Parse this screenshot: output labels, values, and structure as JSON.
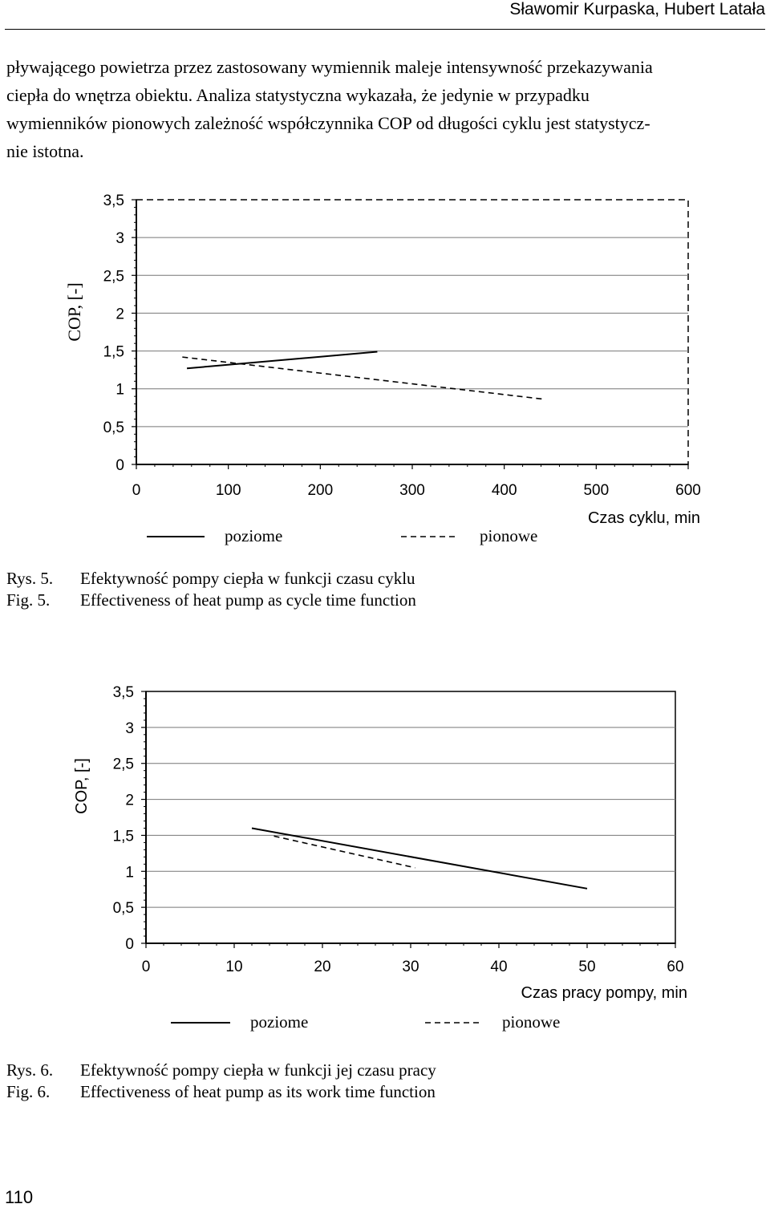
{
  "header": {
    "authors": "Sławomir Kurpaska, Hubert Latała"
  },
  "paragraph": {
    "lines": [
      "pływającego powietrza przez zastosowany wymiennik maleje intensywność przekazywania",
      "ciepła do wnętrza obiektu. Analiza statystyczna wykazała, że jedynie w przypadku",
      "wymienników pionowych zależność współczynnika COP od długości cyklu jest statystycz-",
      "nie istotna."
    ]
  },
  "figures": [
    {
      "caption": {
        "rys_label": "Rys. 5.",
        "rys_text": "Efektywność pompy ciepła w funkcji czasu cyklu",
        "fig_label": "Fig. 5.",
        "fig_text": "Effectiveness of heat pump as cycle time function"
      }
    },
    {
      "caption": {
        "rys_label": "Rys. 6.",
        "rys_text": "Efektywność pompy ciepła w funkcji jej czasu pracy",
        "fig_label": "Fig. 6.",
        "fig_text": "Effectiveness of heat pump as its work time function"
      }
    }
  ],
  "chart_data": [
    {
      "type": "line",
      "xlabel": "Czas cyklu, min",
      "ylabel": "COP, [-]",
      "xlim": [
        0,
        600
      ],
      "ylim": [
        0,
        3.5
      ],
      "xticks": [
        0,
        100,
        200,
        300,
        400,
        500,
        600
      ],
      "yticks": [
        0,
        0.5,
        1,
        1.5,
        2,
        2.5,
        3,
        3.5
      ],
      "xtick_labels": [
        "0",
        "100",
        "200",
        "300",
        "400",
        "500",
        "600"
      ],
      "ytick_labels": [
        "0",
        "0,5",
        "1",
        "1,5",
        "2",
        "2,5",
        "3",
        "3,5"
      ],
      "grid": "horizontal",
      "legend_position": "bottom",
      "series": [
        {
          "name": "poziome",
          "style": "solid",
          "x": [
            55,
            262
          ],
          "y": [
            1.27,
            1.49
          ]
        },
        {
          "name": "pionowe",
          "style": "dashed",
          "x": [
            50,
            445
          ],
          "y": [
            1.42,
            0.86
          ]
        }
      ]
    },
    {
      "type": "line",
      "xlabel": "Czas pracy pompy, min",
      "ylabel": "COP, [-]",
      "xlim": [
        0,
        60
      ],
      "ylim": [
        0,
        3.5
      ],
      "xticks": [
        0,
        10,
        20,
        30,
        40,
        50,
        60
      ],
      "yticks": [
        0,
        0.5,
        1,
        1.5,
        2,
        2.5,
        3,
        3.5
      ],
      "xtick_labels": [
        "0",
        "10",
        "20",
        "30",
        "40",
        "50",
        "60"
      ],
      "ytick_labels": [
        "0",
        "0,5",
        "1",
        "1,5",
        "2",
        "2,5",
        "3",
        "3,5"
      ],
      "grid": "horizontal",
      "legend_position": "bottom",
      "series": [
        {
          "name": "poziome",
          "style": "solid",
          "x": [
            12,
            50
          ],
          "y": [
            1.6,
            0.76
          ]
        },
        {
          "name": "pionowe",
          "style": "dashed",
          "x": [
            14.5,
            30.5
          ],
          "y": [
            1.49,
            1.05
          ]
        }
      ]
    }
  ],
  "page_number": "110"
}
